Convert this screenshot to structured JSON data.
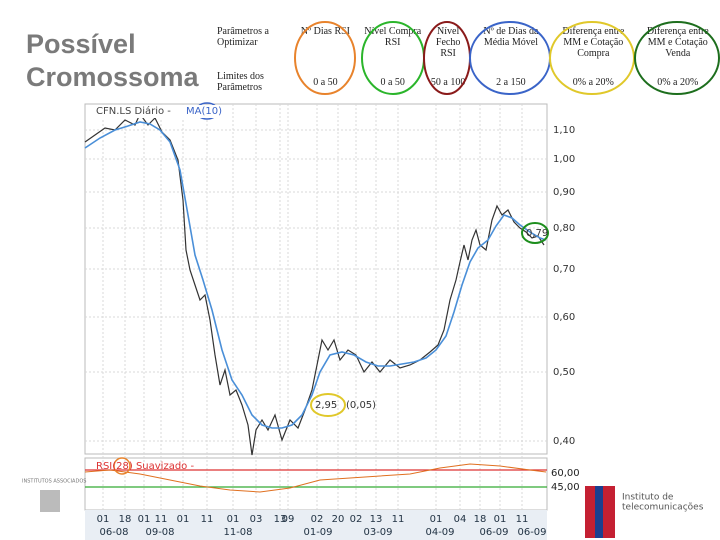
{
  "title": [
    "Possível",
    "Cromossoma"
  ],
  "table": {
    "rows": [
      [
        "Parâmetros a Optimizar",
        "Nº Dias RSI",
        "Nível Compra RSI",
        "Nível Fecho RSI",
        "Nº de Dias da Média Móvel",
        "Diferença entre MM e Cotação Compra",
        "Diferença entre MM e Cotação Venda"
      ],
      [
        "Limites dos Parâmetros",
        "0 a 50",
        "0 a 50",
        "50 a 100",
        "2 a 150",
        "0% a 20%",
        "0% a 20%"
      ]
    ]
  },
  "stock_chart": {
    "ticker": "CFN.LS Diário -",
    "indicator": "MA(10)",
    "price_labels": [
      "1,10",
      "1,00",
      "0,90",
      "0,80",
      "0,70",
      "0,60",
      "0,50",
      "0,40"
    ],
    "annotations": [
      "2,95",
      "(0,05)",
      "0,79"
    ],
    "rsi_title": "RSI(28) Suavizado -",
    "rsi_levels": [
      "60,00",
      "45,00"
    ],
    "day_labels": [
      "01",
      "18",
      "01",
      "11",
      "01",
      "11",
      "01",
      "03",
      "13",
      "09",
      "02",
      "20",
      "02",
      "13",
      "11",
      "01",
      "04",
      "18",
      "01",
      "11"
    ],
    "month_labels": [
      "06-08",
      "09-08",
      "11-08",
      "01-09",
      "03-09",
      "04-09",
      "06-09",
      "06-09"
    ]
  },
  "footer": {
    "left_logo": "INSTITUTOS ASSOCIADOS",
    "right_logo": [
      "Instituto de",
      "telecomunicações"
    ]
  }
}
